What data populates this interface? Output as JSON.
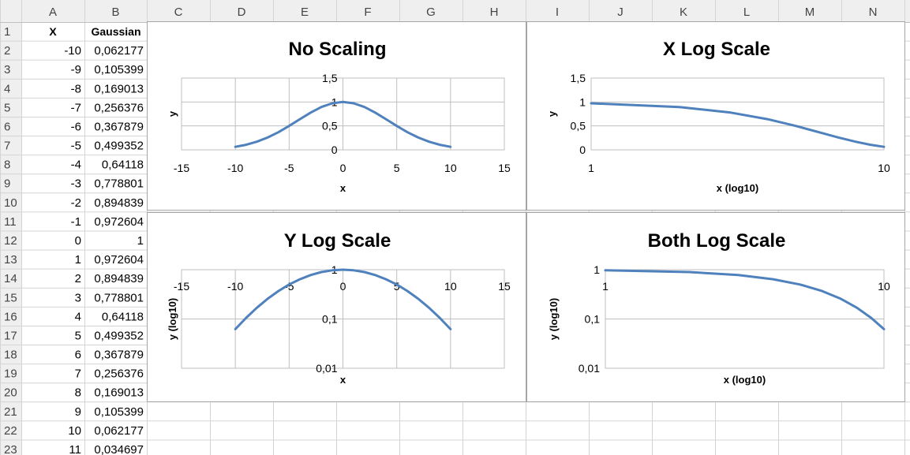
{
  "spreadsheet": {
    "columns": [
      "A",
      "B",
      "C",
      "D",
      "E",
      "F",
      "G",
      "H",
      "I",
      "J",
      "K",
      "L",
      "M",
      "N"
    ],
    "rows": [
      "1",
      "2",
      "3",
      "4",
      "5",
      "6",
      "7",
      "8",
      "9",
      "10",
      "11",
      "12",
      "13",
      "14",
      "15",
      "16",
      "17",
      "18",
      "19",
      "20",
      "21",
      "22",
      "23"
    ],
    "header_row": {
      "a": "X",
      "b": "Gaussian"
    },
    "data": [
      {
        "x": "-10",
        "g": "0,062177"
      },
      {
        "x": "-9",
        "g": "0,105399"
      },
      {
        "x": "-8",
        "g": "0,169013"
      },
      {
        "x": "-7",
        "g": "0,256376"
      },
      {
        "x": "-6",
        "g": "0,367879"
      },
      {
        "x": "-5",
        "g": "0,499352"
      },
      {
        "x": "-4",
        "g": "0,64118"
      },
      {
        "x": "-3",
        "g": "0,778801"
      },
      {
        "x": "-2",
        "g": "0,894839"
      },
      {
        "x": "-1",
        "g": "0,972604"
      },
      {
        "x": "0",
        "g": "1"
      },
      {
        "x": "1",
        "g": "0,972604"
      },
      {
        "x": "2",
        "g": "0,894839"
      },
      {
        "x": "3",
        "g": "0,778801"
      },
      {
        "x": "4",
        "g": "0,64118"
      },
      {
        "x": "5",
        "g": "0,499352"
      },
      {
        "x": "6",
        "g": "0,367879"
      },
      {
        "x": "7",
        "g": "0,256376"
      },
      {
        "x": "8",
        "g": "0,169013"
      },
      {
        "x": "9",
        "g": "0,105399"
      },
      {
        "x": "10",
        "g": "0,062177"
      },
      {
        "x": "11",
        "g": "0,034697"
      }
    ],
    "grid_color": "#d4d4d4",
    "header_bg": "#efefef",
    "series_color": "#4f81bd"
  },
  "chart_data": [
    {
      "type": "line",
      "title": "No Scaling",
      "xlabel": "x",
      "ylabel": "y",
      "xscale": "linear",
      "yscale": "linear",
      "xlim": [
        -15,
        15
      ],
      "ylim": [
        0,
        1.5
      ],
      "xticks": [
        -15,
        -10,
        -5,
        0,
        5,
        10,
        15
      ],
      "xtick_labels": [
        "-15",
        "-10",
        "-5",
        "0",
        "5",
        "10",
        "15"
      ],
      "yticks": [
        0,
        0.5,
        1,
        1.5
      ],
      "ytick_labels": [
        "0",
        "0,5",
        "1",
        "1,5"
      ],
      "x": [
        -10,
        -9,
        -8,
        -7,
        -6,
        -5,
        -4,
        -3,
        -2,
        -1,
        0,
        1,
        2,
        3,
        4,
        5,
        6,
        7,
        8,
        9,
        10
      ],
      "y": [
        0.062177,
        0.105399,
        0.169013,
        0.256376,
        0.367879,
        0.499352,
        0.64118,
        0.778801,
        0.894839,
        0.972604,
        1,
        0.972604,
        0.894839,
        0.778801,
        0.64118,
        0.499352,
        0.367879,
        0.256376,
        0.169013,
        0.105399,
        0.062177
      ],
      "grid": true,
      "legend": "none"
    },
    {
      "type": "line",
      "title": "X Log Scale",
      "xlabel": "x (log10)",
      "ylabel": "y",
      "xscale": "log",
      "yscale": "linear",
      "xlim": [
        1,
        10
      ],
      "ylim": [
        0,
        1.5
      ],
      "xticks": [
        1,
        10
      ],
      "xtick_labels": [
        "1",
        "10"
      ],
      "yticks": [
        0,
        0.5,
        1,
        1.5
      ],
      "ytick_labels": [
        "0",
        "0,5",
        "1",
        "1,5"
      ],
      "x": [
        1,
        2,
        3,
        4,
        5,
        6,
        7,
        8,
        9,
        10
      ],
      "y": [
        0.972604,
        0.894839,
        0.778801,
        0.64118,
        0.499352,
        0.367879,
        0.256376,
        0.169013,
        0.105399,
        0.062177
      ],
      "grid": true,
      "legend": "none"
    },
    {
      "type": "line",
      "title": "Y Log Scale",
      "xlabel": "x",
      "ylabel": "y (log10)",
      "xscale": "linear",
      "yscale": "log",
      "xlim": [
        -15,
        15
      ],
      "ylim": [
        0.01,
        1
      ],
      "xticks": [
        -15,
        -10,
        -5,
        0,
        5,
        10,
        15
      ],
      "xtick_labels": [
        "-15",
        "-10",
        "-5",
        "0",
        "5",
        "10",
        "15"
      ],
      "yticks": [
        0.01,
        0.1,
        1
      ],
      "ytick_labels": [
        "0,01",
        "0,1",
        "1"
      ],
      "x": [
        -10,
        -9,
        -8,
        -7,
        -6,
        -5,
        -4,
        -3,
        -2,
        -1,
        0,
        1,
        2,
        3,
        4,
        5,
        6,
        7,
        8,
        9,
        10
      ],
      "y": [
        0.062177,
        0.105399,
        0.169013,
        0.256376,
        0.367879,
        0.499352,
        0.64118,
        0.778801,
        0.894839,
        0.972604,
        1,
        0.972604,
        0.894839,
        0.778801,
        0.64118,
        0.499352,
        0.367879,
        0.256376,
        0.169013,
        0.105399,
        0.062177
      ],
      "grid": true,
      "legend": "none"
    },
    {
      "type": "line",
      "title": "Both Log Scale",
      "xlabel": "x (log10)",
      "ylabel": "y (log10)",
      "xscale": "log",
      "yscale": "log",
      "xlim": [
        1,
        10
      ],
      "ylim": [
        0.01,
        1
      ],
      "xticks": [
        1,
        10
      ],
      "xtick_labels": [
        "1",
        "10"
      ],
      "yticks": [
        0.01,
        0.1,
        1
      ],
      "ytick_labels": [
        "0,01",
        "0,1",
        "1"
      ],
      "x": [
        1,
        2,
        3,
        4,
        5,
        6,
        7,
        8,
        9,
        10
      ],
      "y": [
        0.972604,
        0.894839,
        0.778801,
        0.64118,
        0.499352,
        0.367879,
        0.256376,
        0.169013,
        0.105399,
        0.062177
      ],
      "grid": true,
      "legend": "none"
    }
  ]
}
